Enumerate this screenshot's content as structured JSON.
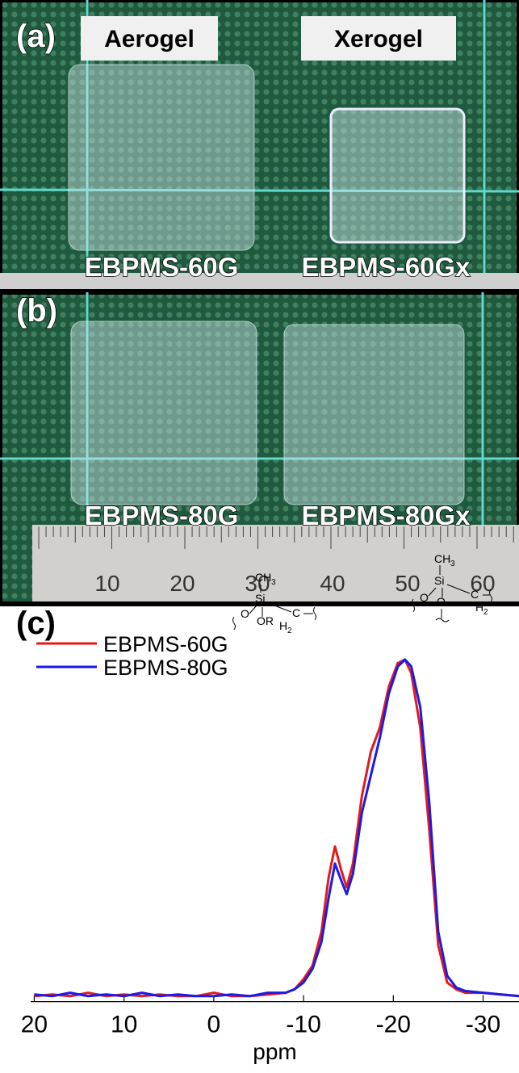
{
  "panel_a": {
    "label": "(a)",
    "tags": [
      "Aerogel",
      "Xerogel"
    ],
    "samples": [
      "EBPMS-60G",
      "EBPMS-60Gx"
    ]
  },
  "panel_b": {
    "label": "(b)",
    "samples": [
      "EBPMS-80G",
      "EBPMS-80Gx"
    ],
    "ruler": [
      "10",
      "20",
      "30",
      "40",
      "50",
      "60"
    ]
  },
  "panel_c": {
    "label": "(c)",
    "structures": [
      {
        "atoms": [
          "CH",
          "3",
          "Si",
          "O",
          "O",
          "C",
          "H",
          "2"
        ]
      },
      {
        "atoms": [
          "CH",
          "3",
          "Si",
          "O",
          "OR",
          "C",
          "H",
          "2"
        ]
      }
    ]
  },
  "chart_data": {
    "type": "line",
    "x_label": "ppm",
    "x": [
      20,
      18,
      16,
      14,
      12,
      10,
      8,
      6,
      4,
      2,
      0,
      -2,
      -4,
      -6,
      -8,
      -9,
      -10,
      -11,
      -12,
      -12.8,
      -13.5,
      -14.2,
      -14.8,
      -15.5,
      -16.5,
      -17.5,
      -18.5,
      -19.5,
      -20.5,
      -21.3,
      -22,
      -23,
      -24,
      -25,
      -26,
      -27,
      -28,
      -30,
      -32,
      -34
    ],
    "series": [
      {
        "name": "EBPMS-60G",
        "color": "#e31a1c",
        "values": [
          0.01,
          0.015,
          0.01,
          0.02,
          0.01,
          0.015,
          0.01,
          0.015,
          0.01,
          0.01,
          0.02,
          0.01,
          0.01,
          0.015,
          0.02,
          0.03,
          0.06,
          0.1,
          0.2,
          0.36,
          0.45,
          0.38,
          0.33,
          0.4,
          0.6,
          0.73,
          0.8,
          0.92,
          0.99,
          1.0,
          0.96,
          0.8,
          0.5,
          0.16,
          0.05,
          0.03,
          0.02,
          0.02,
          0.015,
          0.01
        ]
      },
      {
        "name": "EBPMS-80G",
        "color": "#1a1aeb",
        "values": [
          0.015,
          0.01,
          0.02,
          0.01,
          0.015,
          0.01,
          0.02,
          0.01,
          0.015,
          0.01,
          0.01,
          0.015,
          0.01,
          0.02,
          0.02,
          0.03,
          0.05,
          0.09,
          0.17,
          0.3,
          0.4,
          0.35,
          0.31,
          0.37,
          0.55,
          0.66,
          0.77,
          0.9,
          0.98,
          1.0,
          0.98,
          0.86,
          0.58,
          0.2,
          0.07,
          0.035,
          0.025,
          0.02,
          0.015,
          0.01
        ]
      }
    ],
    "xlim": [
      20.4,
      -34
    ],
    "xticks": [
      20,
      10,
      0,
      -10,
      -20,
      -30
    ],
    "ylim": [
      -0.03,
      1.3
    ]
  }
}
